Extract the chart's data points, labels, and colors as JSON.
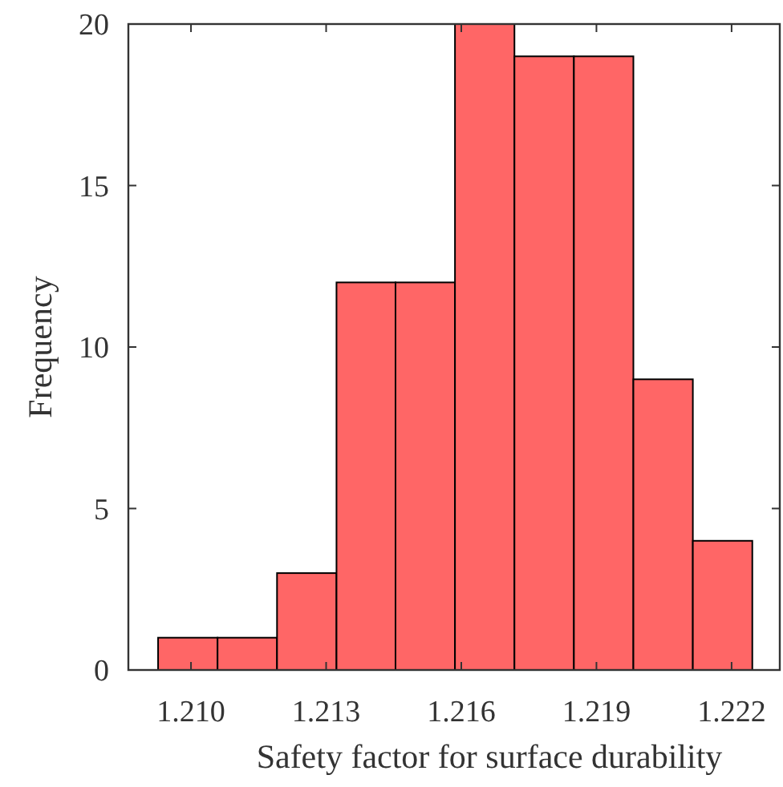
{
  "chart_data": {
    "type": "histogram",
    "xlabel": "Safety factor for surface durability",
    "ylabel": "Frequency",
    "bins": [
      1.20927,
      1.21059,
      1.21191,
      1.21323,
      1.21454,
      1.21586,
      1.21718,
      1.2185,
      1.21982,
      1.22114,
      1.22246
    ],
    "values": [
      1,
      1,
      3,
      12,
      12,
      20,
      19,
      19,
      9,
      4
    ],
    "color": "#ff6666",
    "xlim": [
      1.20861,
      1.22307
    ],
    "xticks": [
      {
        "value": 1.21,
        "label": "1.210"
      },
      1.213,
      1.216,
      1.219,
      1.222
    ],
    "ylim": [
      0,
      20
    ],
    "yticks": [
      0,
      5,
      10,
      15,
      20
    ],
    "grid": false
  }
}
